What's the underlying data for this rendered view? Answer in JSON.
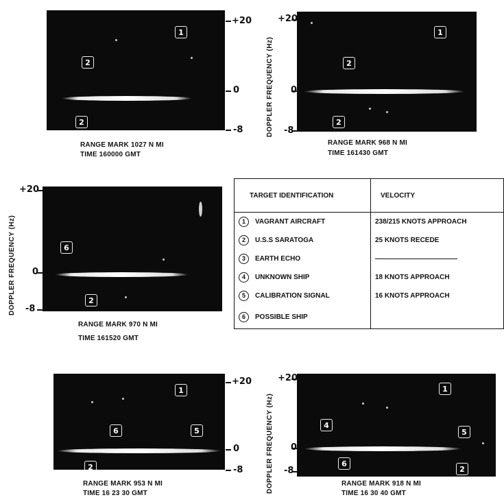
{
  "axis": {
    "ylabel": "DOPPLER FREQUENCY (Hz)",
    "ticks": [
      "+20",
      "0",
      "-8"
    ]
  },
  "panels": [
    {
      "range_label": "RANGE MARK 1027 N MI",
      "time_label": "TIME 160000 GMT",
      "markers": [
        "1",
        "2",
        "2"
      ]
    },
    {
      "range_label": "RANGE MARK 968 N MI",
      "time_label": "TIME 161430 GMT",
      "markers": [
        "1",
        "2",
        "2"
      ]
    },
    {
      "range_label": "RANGE MARK 970 N MI",
      "time_label": "TIME 161520 GMT",
      "markers": [
        "6",
        "2"
      ]
    },
    {
      "range_label": "RANGE MARK 953 N MI",
      "time_label": "TIME 16 23 30 GMT",
      "markers": [
        "1",
        "6",
        "5",
        "2"
      ]
    },
    {
      "range_label": "RANGE MARK 918 N MI",
      "time_label": "TIME 16 30 40 GMT",
      "markers": [
        "4",
        "1",
        "6",
        "5",
        "2"
      ]
    }
  ],
  "legend": {
    "header_id": "TARGET IDENTIFICATION",
    "header_velocity": "VELOCITY",
    "rows": [
      {
        "num": "1",
        "target": "VAGRANT AIRCRAFT",
        "velocity": "238/215 KNOTS APPROACH"
      },
      {
        "num": "2",
        "target": "U.S.S SARATOGA",
        "velocity": "25 KNOTS RECEDE"
      },
      {
        "num": "3",
        "target": "EARTH ECHO",
        "velocity": "————————————"
      },
      {
        "num": "4",
        "target": "UNKNOWN SHIP",
        "velocity": "18 KNOTS APPROACH"
      },
      {
        "num": "5",
        "target": "CALIBRATION SIGNAL",
        "velocity": "16 KNOTS APPROACH"
      },
      {
        "num": "6",
        "target": "POSSIBLE SHIP",
        "velocity": ""
      }
    ]
  }
}
